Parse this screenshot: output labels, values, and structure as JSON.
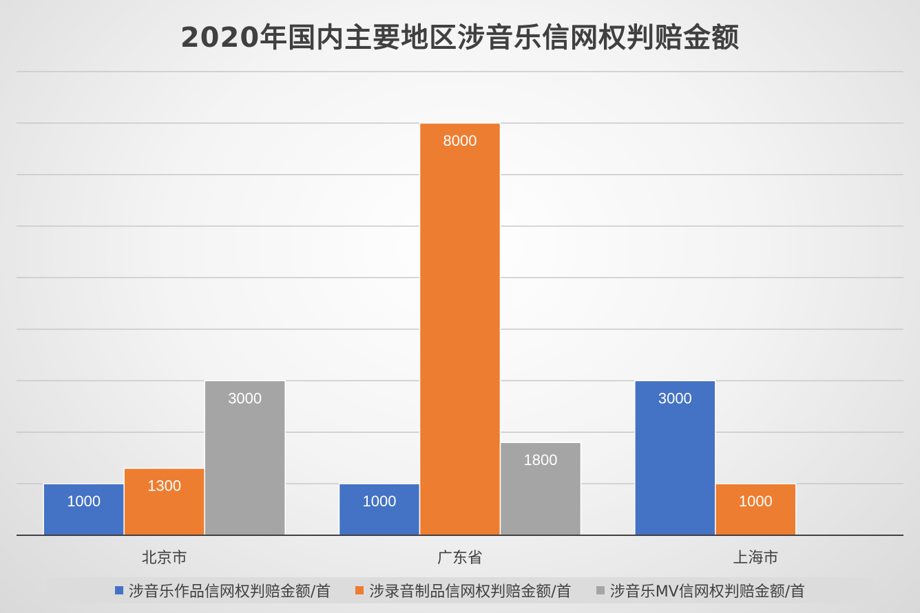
{
  "chart_data": {
    "type": "bar",
    "title": "2020年国内主要地区涉音乐信网权判赔金额",
    "categories": [
      "北京市",
      "广东省",
      "上海市"
    ],
    "series": [
      {
        "name": "涉音乐作品信网权判赔金额/首",
        "color": "#4472C4",
        "values": [
          1000,
          1000,
          3000
        ]
      },
      {
        "name": "涉录音制品信网权判赔金额/首",
        "color": "#ED7D31",
        "values": [
          1300,
          8000,
          1000
        ]
      },
      {
        "name": "涉音乐MV信网权判赔金额/首",
        "color": "#A5A5A5",
        "values": [
          3000,
          1800,
          null
        ]
      }
    ],
    "ylim": [
      0,
      9000
    ],
    "y_gridline_step": 1000,
    "grid": true,
    "legend_position": "bottom",
    "data_labels": true
  }
}
